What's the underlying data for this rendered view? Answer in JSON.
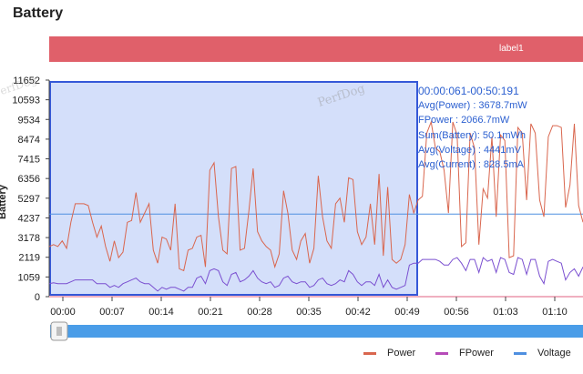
{
  "page": {
    "title": "Battery",
    "label_bar": "label1",
    "y_axis_label": "Battery"
  },
  "summary": {
    "range": "00:00:061-00:50:191",
    "lines": [
      "Avg(Power)   : 3678.7mW",
      "FPower       : 2066.7mW",
      "Sum(Battery): 50.1mWh",
      "Avg(Voltage) : 4441mV",
      "Avg(Current) : 828.5mA"
    ]
  },
  "watermark": "PerfDog",
  "legend": [
    {
      "name": "Power",
      "color": "#d9664e"
    },
    {
      "name": "FPower",
      "color": "#b64bb8"
    },
    {
      "name": "Voltage",
      "color": "#4f8fe0"
    }
  ],
  "chart_data": {
    "type": "line",
    "y_ticks": [
      0,
      1059,
      2119,
      3178,
      4237,
      5297,
      6356,
      7415,
      8474,
      9534,
      10593,
      11652
    ],
    "x_ticks": [
      "00:00",
      "00:07",
      "00:14",
      "00:21",
      "00:28",
      "00:35",
      "00:42",
      "00:49",
      "00:56",
      "01:03",
      "01:10"
    ],
    "ylim": [
      0,
      11652
    ],
    "xlim_seconds": [
      0,
      74
    ],
    "selection_seconds": [
      0,
      50.2
    ],
    "reference_line": {
      "name": "Voltage",
      "value": 4441
    },
    "series": [
      {
        "name": "Power",
        "color": "#d9664e",
        "values": [
          2700,
          2800,
          2700,
          3000,
          2600,
          4000,
          5000,
          5000,
          5000,
          4900,
          4000,
          3200,
          3800,
          2700,
          1900,
          3000,
          2100,
          2400,
          4000,
          4100,
          5600,
          4000,
          4500,
          5000,
          2500,
          1800,
          3200,
          3100,
          2500,
          5000,
          1500,
          1400,
          2500,
          2600,
          3200,
          3300,
          1600,
          6800,
          7200,
          4300,
          2500,
          2300,
          6900,
          7000,
          2500,
          2600,
          4600,
          6900,
          3500,
          3000,
          2700,
          2500,
          1600,
          2300,
          5700,
          4500,
          2500,
          2000,
          3000,
          3400,
          1800,
          2600,
          6500,
          4300,
          3000,
          2600,
          5000,
          5300,
          4000,
          6400,
          6300,
          3500,
          2800,
          3200,
          5000,
          2800,
          6600,
          2200,
          5900,
          2000,
          1800,
          2000,
          2800,
          5500,
          4500,
          5200,
          5400,
          8800,
          9400,
          8000,
          7800,
          6800,
          4500,
          9400,
          8700,
          2700,
          2900,
          8800,
          8000,
          2800,
          5800,
          5300,
          8600,
          4300,
          8700,
          8400,
          2100,
          2200,
          9100,
          8800,
          5200,
          9300,
          8800,
          5200,
          4300,
          8600,
          9200,
          9200,
          9100,
          4800,
          6000,
          9300,
          4900,
          4000
        ],
        "fpower": [
          700,
          750,
          700,
          700,
          700,
          800,
          900,
          900,
          900,
          900,
          900,
          700,
          700,
          700,
          500,
          600,
          500,
          700,
          800,
          900,
          1000,
          800,
          700,
          700,
          500,
          300,
          500,
          400,
          500,
          500,
          400,
          300,
          500,
          500,
          1000,
          1100,
          700,
          1400,
          1500,
          1400,
          800,
          600,
          1200,
          1300,
          800,
          900,
          1100,
          1400,
          1000,
          800,
          700,
          800,
          500,
          600,
          1000,
          1100,
          800,
          700,
          800,
          800,
          500,
          600,
          900,
          1000,
          700,
          600,
          700,
          900,
          800,
          1400,
          1200,
          800,
          600,
          800,
          800,
          600,
          1200,
          500,
          900,
          500,
          400,
          500,
          600,
          1700,
          1800,
          1800,
          2000,
          2000,
          2000,
          2000,
          1900,
          1700,
          1700,
          2000,
          2100,
          1800,
          1400,
          2000,
          2000,
          1300,
          2100,
          1900,
          2000,
          1300,
          2100,
          2000,
          1300,
          1200,
          2100,
          2000,
          1200,
          2000,
          2000,
          1100,
          700,
          1900,
          2000,
          1900,
          1800,
          900,
          1300,
          1500,
          1100,
          1600
        ]
      }
    ]
  }
}
